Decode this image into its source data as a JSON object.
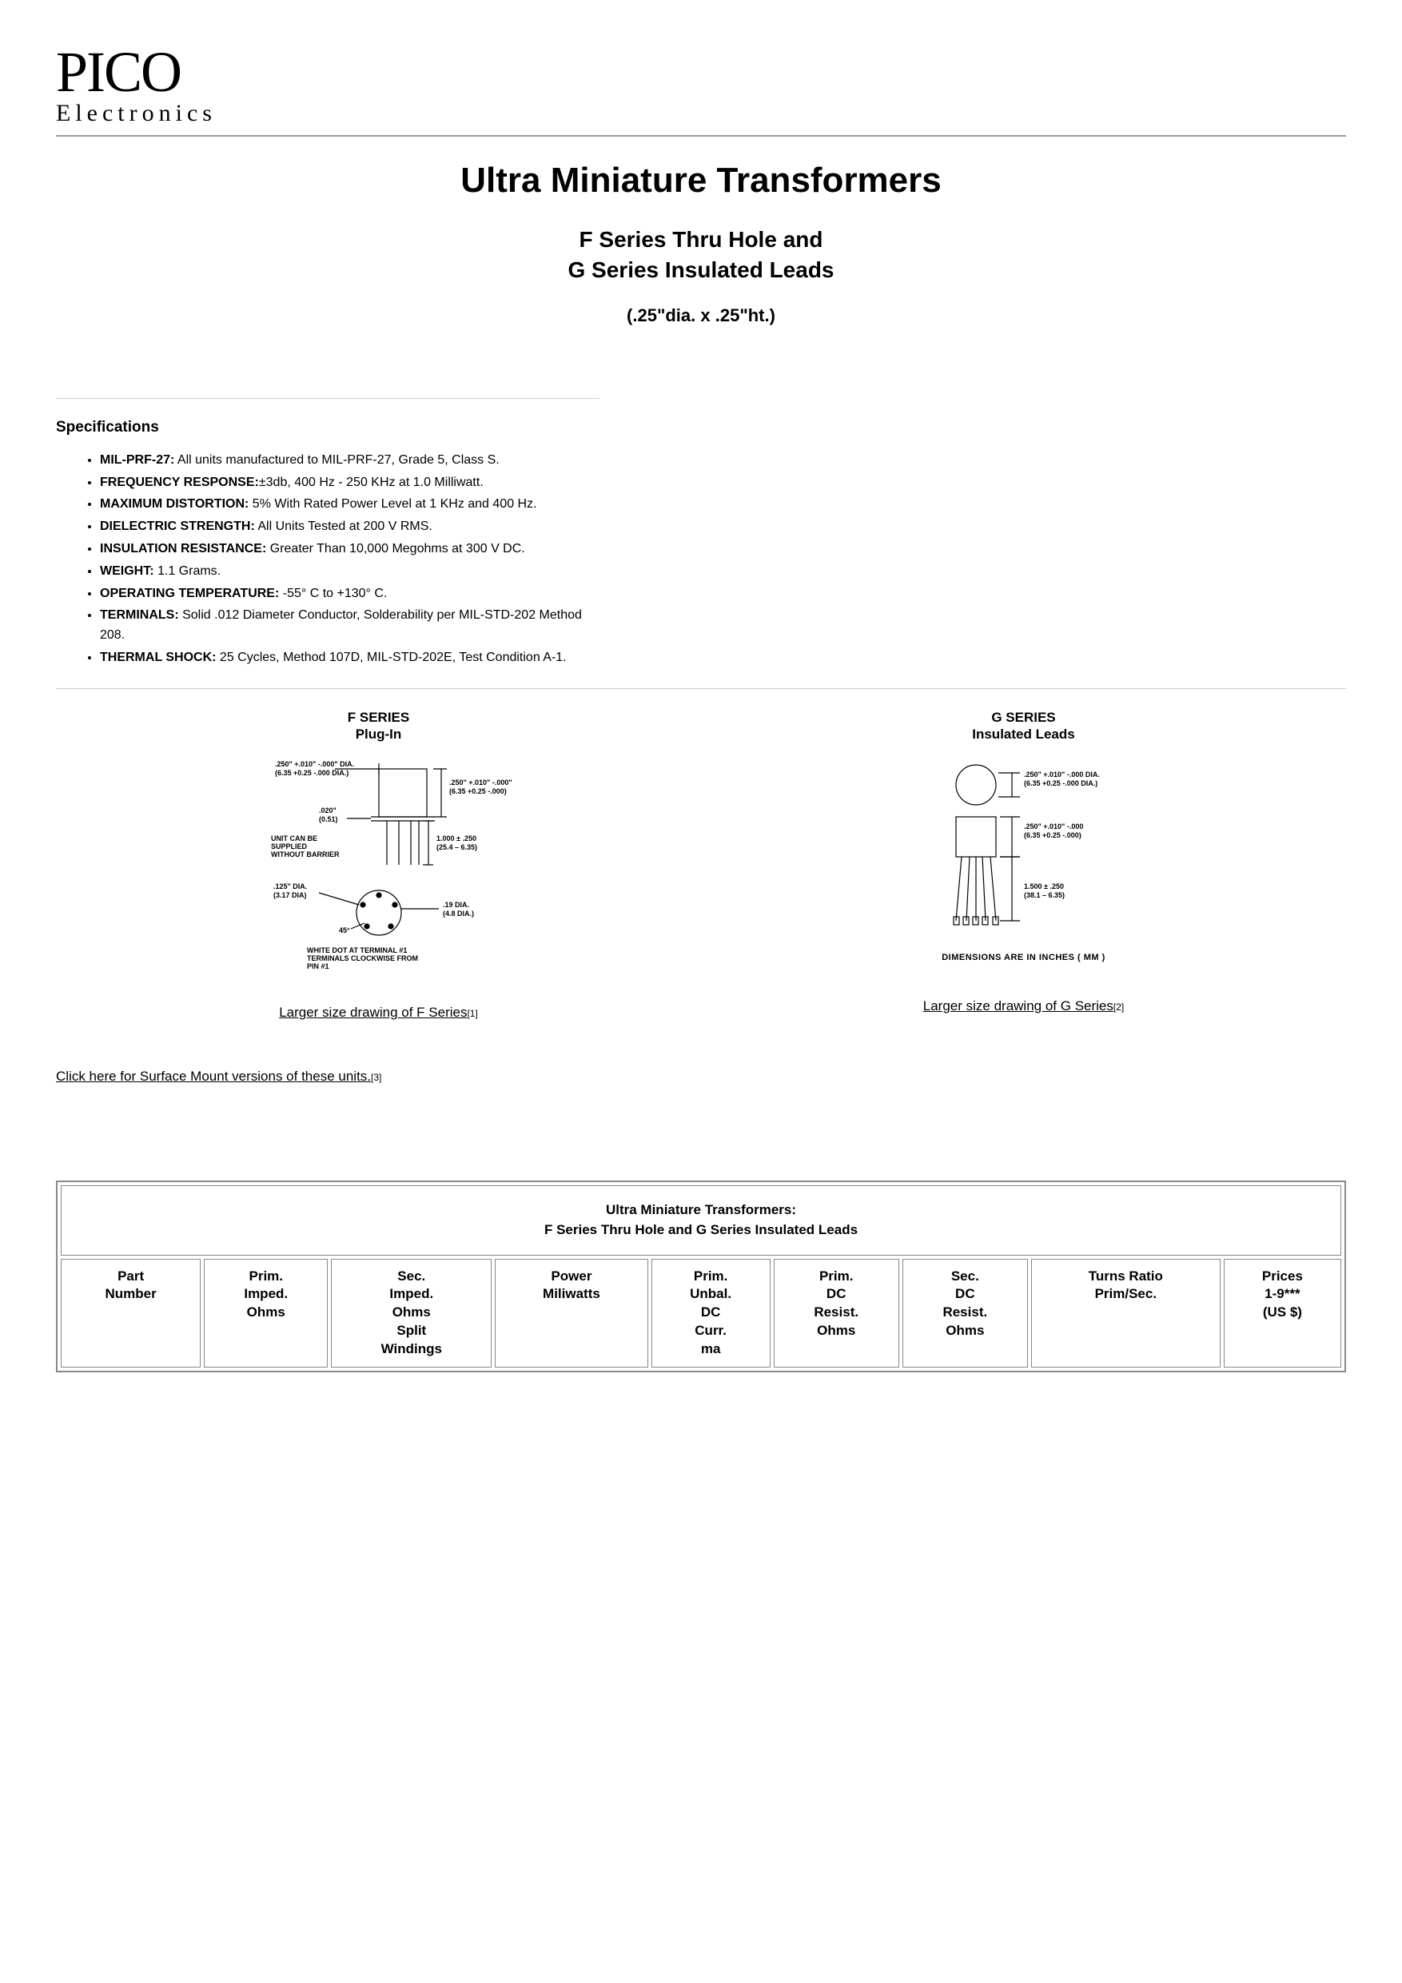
{
  "logo": {
    "main": "PICO",
    "sub": "Electronics"
  },
  "title": {
    "main": "Ultra Miniature Transformers",
    "sub1": "F Series Thru Hole and",
    "sub2": "G Series Insulated Leads",
    "dim": "(.25\"dia. x .25\"ht.)"
  },
  "specs": {
    "heading": "Specifications",
    "items": [
      {
        "label": "MIL-PRF-27:",
        "text": " All units manufactured to MIL-PRF-27, Grade 5, Class S."
      },
      {
        "label": "FREQUENCY RESPONSE:",
        "text": "±3db, 400 Hz - 250 KHz at 1.0 Milliwatt."
      },
      {
        "label": "MAXIMUM DISTORTION:",
        "text": " 5% With Rated Power Level at 1 KHz and 400 Hz."
      },
      {
        "label": "DIELECTRIC STRENGTH:",
        "text": " All Units Tested at 200 V RMS."
      },
      {
        "label": "INSULATION RESISTANCE:",
        "text": " Greater Than 10,000 Megohms at 300 V DC."
      },
      {
        "label": "WEIGHT:",
        "text": " 1.1 Grams."
      },
      {
        "label": "OPERATING TEMPERATURE:",
        "text": " -55° C to +130° C."
      },
      {
        "label": "TERMINALS:",
        "text": " Solid .012 Diameter Conductor, Solderability per MIL-STD-202 Method 208."
      },
      {
        "label": "THERMAL SHOCK:",
        "text": " 25 Cycles, Method 107D, MIL-STD-202E, Test Condition A-1."
      }
    ]
  },
  "drawings": {
    "f": {
      "title1": "F SERIES",
      "title2": "Plug-In",
      "dims": {
        "d1": ".250\" +.010\" -.000\" DIA.",
        "d1m": "(6.35 +0.25 -.000 DIA.)",
        "d2": ".250\" +.010\" -.000\"",
        "d2m": "(6.35 +0.25 -.000)",
        "thk": ".020\"",
        "thkm": "(0.51)",
        "lead": "1.000 ± .250",
        "leadm": "(25.4 – 6.35)",
        "barrier": "UNIT CAN BE SUPPLIED WITHOUT BARRIER",
        "bcd": ".125\" DIA.",
        "bcdm": "(3.17 DIA)",
        "pin": ".19 DIA.",
        "pinm": "(4.8 DIA.)",
        "angle": "45°",
        "note": "WHITE DOT AT TERMINAL #1 TERMINALS CLOCKWISE FROM PIN #1"
      },
      "link": "Larger size drawing of F Series",
      "ref": "[1]"
    },
    "g": {
      "title1": "G SERIES",
      "title2": "Insulated Leads",
      "dims": {
        "d1": ".250\" +.010\" -.000 DIA.",
        "d1m": "(6.35 +0.25 -.000 DIA.)",
        "d2": ".250\" +.010\" -.000",
        "d2m": "(6.35 +0.25 -.000)",
        "lead": "1.500 ± .250",
        "leadm": "(38.1 – 6.35)",
        "note": "DIMENSIONS ARE IN INCHES ( MM )"
      },
      "link": "Larger size drawing of G Series",
      "ref": "[2]"
    }
  },
  "sm_link": {
    "text": "Click here for Surface Mount versions of these units.",
    "ref": "[3]"
  },
  "table": {
    "title1": "Ultra Miniature Transformers:",
    "title2": "F Series Thru Hole and G Series Insulated Leads",
    "columns": [
      "Part\nNumber",
      "Prim.\nImped.\nOhms",
      "Sec.\nImped.\nOhms\nSplit\nWindings",
      "Power\nMiliwatts",
      "Prim.\nUnbal.\nDC\nCurr.\nma",
      "Prim.\nDC\nResist.\nOhms",
      "Sec.\nDC\nResist.\nOhms",
      "Turns Ratio\nPrim/Sec.",
      "Prices\n1-9***\n(US $)"
    ]
  },
  "colors": {
    "text": "#000000",
    "rule": "#999999",
    "border": "#888888",
    "bg": "#ffffff"
  }
}
